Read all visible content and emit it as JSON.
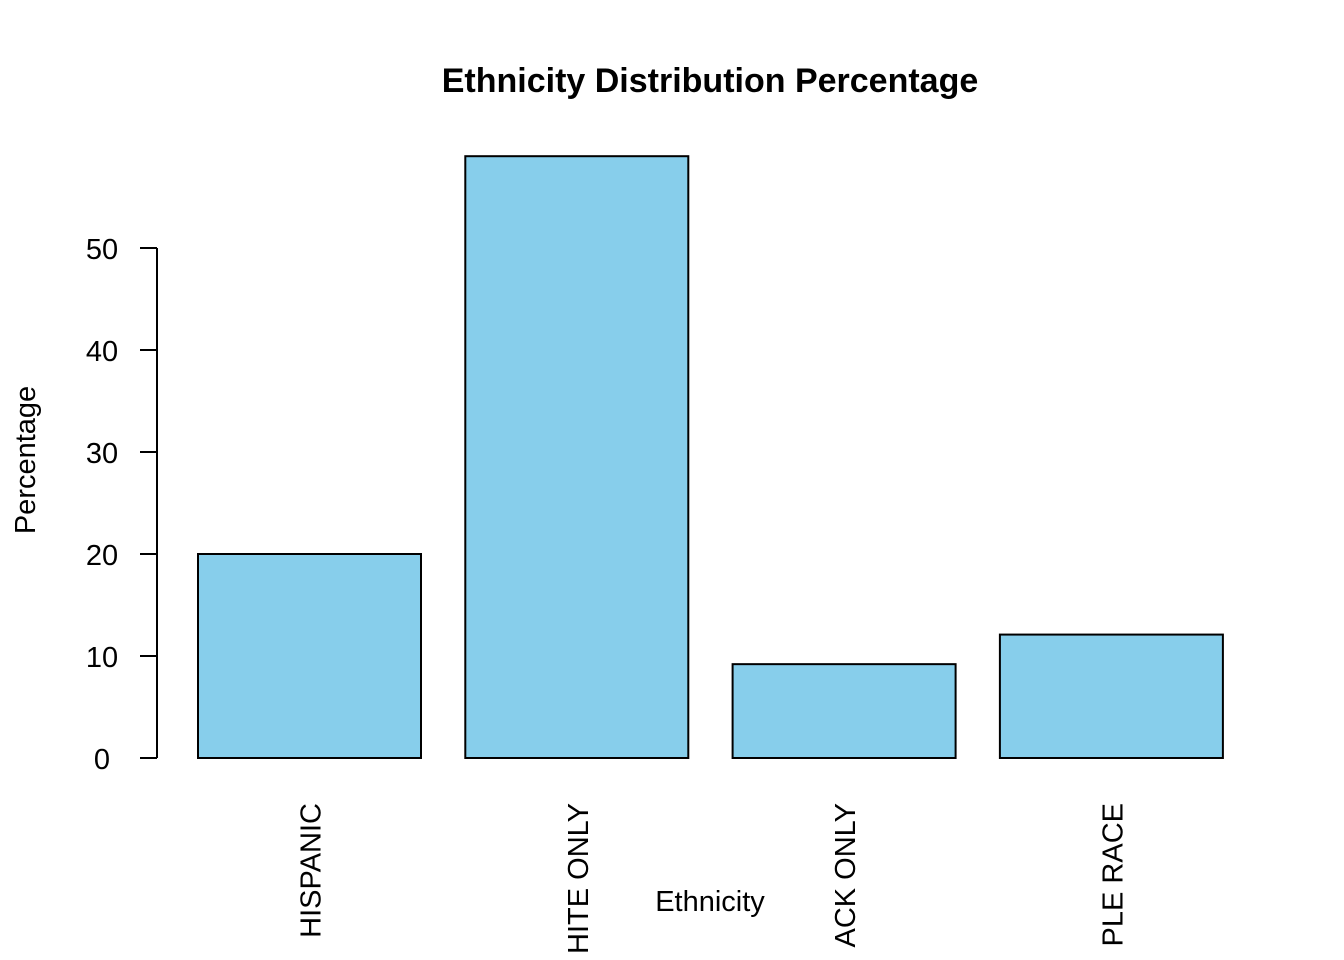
{
  "chart_data": {
    "type": "bar",
    "title": "Ethnicity Distribution Percentage",
    "xlabel": "Ethnicity",
    "ylabel": "Percentage",
    "categories": [
      "HISPANIC",
      "WHITE ONLY",
      "BLACK ONLY",
      "MULTIPLE RACE"
    ],
    "category_labels_visible": [
      "HISPANIC",
      "HITE ONLY",
      "ACK ONLY",
      "PLE RACE"
    ],
    "values": [
      20,
      59,
      9.2,
      12.1
    ],
    "ylim": [
      0,
      59
    ],
    "yticks": [
      0,
      10,
      20,
      30,
      40,
      50
    ],
    "bar_color": "#87CEEB",
    "bar_border_color": "#000000",
    "grid": false,
    "legend": "none"
  }
}
